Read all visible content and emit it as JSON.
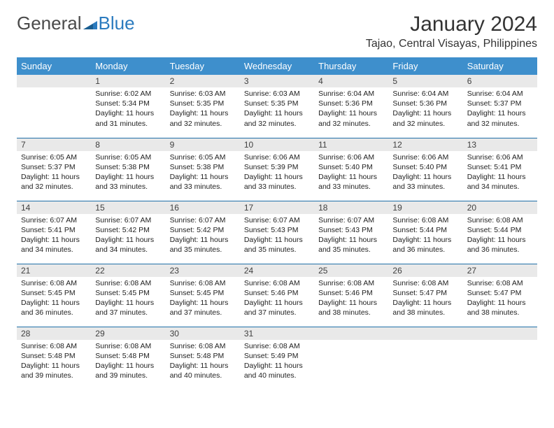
{
  "brand": {
    "part1": "General",
    "part2": "Blue"
  },
  "title": "January 2024",
  "location": "Tajao, Central Visayas, Philippines",
  "colors": {
    "header_bg": "#3e8fcc",
    "header_fg": "#ffffff",
    "daynum_bg": "#e9e9e9",
    "row_border": "#1f6fa8",
    "logo_blue": "#2b7bbf",
    "text": "#333333"
  },
  "layout": {
    "columns": 7,
    "rows": 5,
    "first_weekday_index": 1
  },
  "weekdays": [
    "Sunday",
    "Monday",
    "Tuesday",
    "Wednesday",
    "Thursday",
    "Friday",
    "Saturday"
  ],
  "days": [
    {
      "n": 1,
      "sunrise": "6:02 AM",
      "sunset": "5:34 PM",
      "daylight": "11 hours and 31 minutes."
    },
    {
      "n": 2,
      "sunrise": "6:03 AM",
      "sunset": "5:35 PM",
      "daylight": "11 hours and 32 minutes."
    },
    {
      "n": 3,
      "sunrise": "6:03 AM",
      "sunset": "5:35 PM",
      "daylight": "11 hours and 32 minutes."
    },
    {
      "n": 4,
      "sunrise": "6:04 AM",
      "sunset": "5:36 PM",
      "daylight": "11 hours and 32 minutes."
    },
    {
      "n": 5,
      "sunrise": "6:04 AM",
      "sunset": "5:36 PM",
      "daylight": "11 hours and 32 minutes."
    },
    {
      "n": 6,
      "sunrise": "6:04 AM",
      "sunset": "5:37 PM",
      "daylight": "11 hours and 32 minutes."
    },
    {
      "n": 7,
      "sunrise": "6:05 AM",
      "sunset": "5:37 PM",
      "daylight": "11 hours and 32 minutes."
    },
    {
      "n": 8,
      "sunrise": "6:05 AM",
      "sunset": "5:38 PM",
      "daylight": "11 hours and 33 minutes."
    },
    {
      "n": 9,
      "sunrise": "6:05 AM",
      "sunset": "5:38 PM",
      "daylight": "11 hours and 33 minutes."
    },
    {
      "n": 10,
      "sunrise": "6:06 AM",
      "sunset": "5:39 PM",
      "daylight": "11 hours and 33 minutes."
    },
    {
      "n": 11,
      "sunrise": "6:06 AM",
      "sunset": "5:40 PM",
      "daylight": "11 hours and 33 minutes."
    },
    {
      "n": 12,
      "sunrise": "6:06 AM",
      "sunset": "5:40 PM",
      "daylight": "11 hours and 33 minutes."
    },
    {
      "n": 13,
      "sunrise": "6:06 AM",
      "sunset": "5:41 PM",
      "daylight": "11 hours and 34 minutes."
    },
    {
      "n": 14,
      "sunrise": "6:07 AM",
      "sunset": "5:41 PM",
      "daylight": "11 hours and 34 minutes."
    },
    {
      "n": 15,
      "sunrise": "6:07 AM",
      "sunset": "5:42 PM",
      "daylight": "11 hours and 34 minutes."
    },
    {
      "n": 16,
      "sunrise": "6:07 AM",
      "sunset": "5:42 PM",
      "daylight": "11 hours and 35 minutes."
    },
    {
      "n": 17,
      "sunrise": "6:07 AM",
      "sunset": "5:43 PM",
      "daylight": "11 hours and 35 minutes."
    },
    {
      "n": 18,
      "sunrise": "6:07 AM",
      "sunset": "5:43 PM",
      "daylight": "11 hours and 35 minutes."
    },
    {
      "n": 19,
      "sunrise": "6:08 AM",
      "sunset": "5:44 PM",
      "daylight": "11 hours and 36 minutes."
    },
    {
      "n": 20,
      "sunrise": "6:08 AM",
      "sunset": "5:44 PM",
      "daylight": "11 hours and 36 minutes."
    },
    {
      "n": 21,
      "sunrise": "6:08 AM",
      "sunset": "5:45 PM",
      "daylight": "11 hours and 36 minutes."
    },
    {
      "n": 22,
      "sunrise": "6:08 AM",
      "sunset": "5:45 PM",
      "daylight": "11 hours and 37 minutes."
    },
    {
      "n": 23,
      "sunrise": "6:08 AM",
      "sunset": "5:45 PM",
      "daylight": "11 hours and 37 minutes."
    },
    {
      "n": 24,
      "sunrise": "6:08 AM",
      "sunset": "5:46 PM",
      "daylight": "11 hours and 37 minutes."
    },
    {
      "n": 25,
      "sunrise": "6:08 AM",
      "sunset": "5:46 PM",
      "daylight": "11 hours and 38 minutes."
    },
    {
      "n": 26,
      "sunrise": "6:08 AM",
      "sunset": "5:47 PM",
      "daylight": "11 hours and 38 minutes."
    },
    {
      "n": 27,
      "sunrise": "6:08 AM",
      "sunset": "5:47 PM",
      "daylight": "11 hours and 38 minutes."
    },
    {
      "n": 28,
      "sunrise": "6:08 AM",
      "sunset": "5:48 PM",
      "daylight": "11 hours and 39 minutes."
    },
    {
      "n": 29,
      "sunrise": "6:08 AM",
      "sunset": "5:48 PM",
      "daylight": "11 hours and 39 minutes."
    },
    {
      "n": 30,
      "sunrise": "6:08 AM",
      "sunset": "5:48 PM",
      "daylight": "11 hours and 40 minutes."
    },
    {
      "n": 31,
      "sunrise": "6:08 AM",
      "sunset": "5:49 PM",
      "daylight": "11 hours and 40 minutes."
    }
  ],
  "labels": {
    "sunrise": "Sunrise:",
    "sunset": "Sunset:",
    "daylight": "Daylight:"
  }
}
